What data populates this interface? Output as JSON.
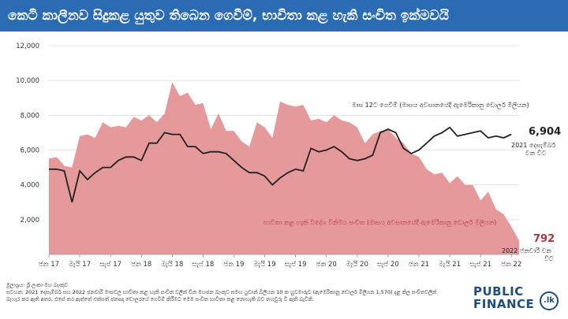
{
  "title": "කෙටි කාලීනව සිදුකළ යුතුව තිබෙන ගෙවීම්, භාවිතා කළ හැකි සංචිත ඉක්මවයි",
  "chart_data": {
    "type": "area",
    "title": "කෙටි කාලීනව සිදුකළ යුතුව තිබෙන ගෙවීම්, භාවිතා කළ හැකි සංචිත ඉක්මවයි",
    "ylim": [
      0,
      12000
    ],
    "yticks": [
      "12,000",
      "10,000",
      "8,000",
      "6,000",
      "4,000",
      "2,000"
    ],
    "ytick_values": [
      12000,
      10000,
      8000,
      6000,
      4000,
      2000
    ],
    "xtick_labels": [
      "ජන 17",
      "මැයි 17",
      "සැප් 17",
      "ජන 18",
      "මැයි 18",
      "සැප් 18",
      "ජන 19",
      "මැයි 19",
      "සැප් 19",
      "ජන 20",
      "මැයි 20",
      "සැප් 20",
      "ජන 21",
      "මැයි 21",
      "සැප් 21",
      "ජන 22"
    ],
    "xtick_index": [
      0,
      4,
      8,
      12,
      16,
      20,
      24,
      28,
      32,
      36,
      40,
      44,
      48,
      52,
      56,
      60
    ],
    "series": [
      {
        "name": "භාවිතා කළ හැකි විදේශ විනිමය සංචිත (මාසය අවසානයේදී ඇමෙරිකානු ඩොලර් මිලියන)",
        "type": "area",
        "color": "#e5999b",
        "values": [
          5500,
          5600,
          5100,
          5000,
          6800,
          6900,
          6700,
          7600,
          7300,
          7400,
          7300,
          7900,
          7700,
          8000,
          7600,
          8100,
          9900,
          9100,
          9300,
          8600,
          8700,
          7200,
          8100,
          7100,
          7100,
          6500,
          6200,
          7600,
          7300,
          6700,
          8800,
          8600,
          8500,
          8600,
          7700,
          7800,
          7600,
          8000,
          7700,
          7600,
          7300,
          6400,
          6900,
          7100,
          7200,
          6700,
          6400,
          5800,
          5600,
          4900,
          4600,
          4700,
          4100,
          4500,
          4000,
          4000,
          3100,
          3600,
          2600,
          2300,
          1600,
          792
        ]
      },
      {
        "name": "මාස 12ට ගෙවීම් (මාසය අවසානයේදී ඇමෙරිකානු ඩොලර් මිලියන)",
        "type": "line",
        "color": "#222222",
        "values": [
          4900,
          4900,
          4800,
          3000,
          4800,
          4300,
          4700,
          5000,
          5000,
          5400,
          5600,
          5600,
          5400,
          6400,
          6400,
          7000,
          6900,
          6900,
          6200,
          6200,
          5800,
          5900,
          5900,
          5800,
          5400,
          5000,
          4700,
          4700,
          4500,
          4000,
          4400,
          4700,
          4900,
          4800,
          6100,
          5900,
          6000,
          6200,
          5900,
          5500,
          5400,
          5500,
          5700,
          7000,
          7200,
          7000,
          6100,
          5800,
          6000,
          6400,
          6800,
          7000,
          7300,
          6800,
          6900,
          7000,
          7100,
          6700,
          6800,
          6700,
          6904
        ]
      }
    ],
    "annotations": {
      "payments_label": "මාස 12ට ගෙවීම් (මාසය අවසානයේදී ඇමෙරිකානු ඩොලර් මිලියන)",
      "payments_value": "6,904",
      "payments_date_1": "2021 දෙසැම්බර්",
      "payments_date_2": "වන විට",
      "reserves_label": "භාවිතා කළ හැකි විදේශ විනිමය සංචිත (මාසය අවසානයේදී ඇමෙරිකානු ඩොලර් මිලියන)",
      "reserves_value": "792",
      "reserves_date_1": "2022 ජනවාරි වන",
      "reserves_date_2": "විට"
    }
  },
  "footer": {
    "source": "මූලාශ්‍රය: ශ්‍රී ලංකා මහ බැංකුව",
    "note": "සටහන: 2021 දෙසැම්බර් සහ 2022 ජනවාරි මාසවල භාවිතා කළ හැකි සංචිත වලින් චීන මහජන බැංකුව සමඟ යුවාන් බිලියන 10 ක හුවමාරුව (ඇමෙරිකානු ඩොලර් මිලියන 1,570) දළ නිල සංචිතවලින් බැහැර කර ඇති අතර, එසේ කර ඇත්තේ එක්සත් ජනපද ඩොලරයේ ගෙවීම් කිරීමට මෙම සංචිත භාවිතා කළ නොහැකි බව තහවුරු වී ඇති බැවිනි."
  },
  "logo": {
    "line1": "PUBLIC",
    "line2": "FINANCE",
    "badge": ".lk"
  }
}
